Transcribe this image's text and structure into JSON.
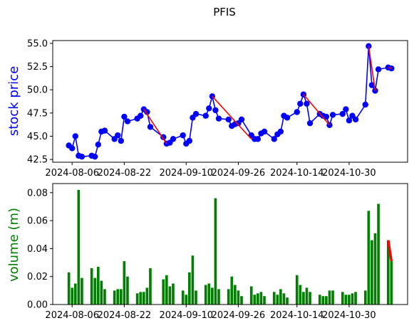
{
  "title": "PFIS",
  "colors": {
    "price_line": "#0000ff",
    "trend": "#ff0000",
    "volume": "#008000",
    "axes": "#000000"
  },
  "chart_data": [
    {
      "type": "line",
      "ylabel": "stock price",
      "ylim": [
        42.2,
        55.3
      ],
      "y_ticks": [
        "42.5",
        "45.0",
        "47.5",
        "50.0",
        "52.5",
        "55.0"
      ],
      "x_ticks": [
        "2024-08-06",
        "2024-08-22",
        "2024-09-10",
        "2024-09-26",
        "2024-10-14",
        "2024-10-30"
      ],
      "grid": false,
      "x": [
        "2024-08-05",
        "2024-08-06",
        "2024-08-07",
        "2024-08-08",
        "2024-08-09",
        "2024-08-12",
        "2024-08-13",
        "2024-08-14",
        "2024-08-15",
        "2024-08-16",
        "2024-08-19",
        "2024-08-20",
        "2024-08-21",
        "2024-08-22",
        "2024-08-23",
        "2024-08-26",
        "2024-08-27",
        "2024-08-28",
        "2024-08-29",
        "2024-08-30",
        "2024-09-03",
        "2024-09-04",
        "2024-09-05",
        "2024-09-06",
        "2024-09-09",
        "2024-09-10",
        "2024-09-11",
        "2024-09-12",
        "2024-09-13",
        "2024-09-16",
        "2024-09-17",
        "2024-09-18",
        "2024-09-19",
        "2024-09-20",
        "2024-09-23",
        "2024-09-24",
        "2024-09-25",
        "2024-09-26",
        "2024-09-27",
        "2024-09-30",
        "2024-10-01",
        "2024-10-02",
        "2024-10-03",
        "2024-10-04",
        "2024-10-07",
        "2024-10-08",
        "2024-10-09",
        "2024-10-10",
        "2024-10-11",
        "2024-10-14",
        "2024-10-15",
        "2024-10-16",
        "2024-10-17",
        "2024-10-18",
        "2024-10-21",
        "2024-10-22",
        "2024-10-23",
        "2024-10-24",
        "2024-10-25",
        "2024-10-28",
        "2024-10-29",
        "2024-10-30",
        "2024-10-31",
        "2024-11-01",
        "2024-11-04",
        "2024-11-05",
        "2024-11-06",
        "2024-11-07",
        "2024-11-08",
        "2024-11-11",
        "2024-11-12"
      ],
      "series": [
        {
          "values": [
            44.0,
            43.7,
            45.0,
            42.9,
            42.8,
            42.9,
            42.8,
            44.1,
            45.5,
            45.6,
            44.7,
            45.1,
            44.5,
            47.1,
            46.6,
            46.9,
            47.2,
            47.9,
            47.6,
            46.0,
            44.9,
            44.2,
            44.3,
            44.7,
            45.1,
            44.2,
            44.5,
            47.0,
            47.4,
            47.2,
            48.0,
            49.3,
            47.8,
            46.9,
            46.8,
            46.1,
            46.3,
            46.4,
            46.8,
            45.1,
            44.7,
            44.7,
            45.3,
            45.5,
            44.7,
            45.2,
            45.5,
            47.2,
            47.0,
            47.6,
            48.5,
            49.5,
            48.5,
            46.4,
            47.4,
            47.2,
            47.1,
            46.2,
            47.3,
            47.4,
            47.9,
            46.7,
            47.2,
            46.8,
            48.4,
            54.7,
            50.5,
            49.9,
            52.2,
            52.4,
            52.3
          ]
        }
      ],
      "trend_segments": [
        {
          "from": "2024-08-28",
          "to": "2024-09-04",
          "values": [
            47.9,
            44.2
          ]
        },
        {
          "from": "2024-09-18",
          "to": "2024-09-30",
          "values": [
            49.3,
            44.7
          ]
        },
        {
          "from": "2024-10-16",
          "to": "2024-10-24",
          "values": [
            49.5,
            46.2
          ]
        },
        {
          "from": "2024-11-05",
          "to": "2024-11-07",
          "values": [
            54.7,
            49.9
          ]
        },
        {
          "from": "2024-11-11",
          "to": "2024-11-12",
          "values": [
            52.4,
            52.3
          ]
        }
      ]
    },
    {
      "type": "bar",
      "ylabel": "volume (m)",
      "ylim": [
        0,
        0.0865
      ],
      "y_ticks": [
        "0.00",
        "0.02",
        "0.04",
        "0.06",
        "0.08"
      ],
      "x_ticks": [
        "2024-08-06",
        "2024-08-22",
        "2024-09-10",
        "2024-09-26",
        "2024-10-14",
        "2024-10-30"
      ],
      "grid": false,
      "values": [
        0.023,
        0.012,
        0.015,
        0.082,
        0.019,
        0.026,
        0.019,
        0.027,
        0.017,
        0.011,
        0.01,
        0.011,
        0.011,
        0.031,
        0.02,
        0.008,
        0.009,
        0.009,
        0.012,
        0.026,
        0.018,
        0.021,
        0.013,
        0.015,
        0.01,
        0.007,
        0.023,
        0.035,
        0.01,
        0.014,
        0.015,
        0.012,
        0.076,
        0.011,
        0.011,
        0.02,
        0.014,
        0.01,
        0.006,
        0.013,
        0.007,
        0.008,
        0.009,
        0.006,
        0.009,
        0.007,
        0.011,
        0.008,
        0.005,
        0.021,
        0.014,
        0.009,
        0.012,
        0.009,
        0.007,
        0.006,
        0.006,
        0.01,
        0.01,
        0.009,
        0.007,
        0.007,
        0.008,
        0.009,
        0.01,
        0.067,
        0.046,
        0.051,
        0.072,
        0.046,
        0.031
      ],
      "trend_segments": [
        {
          "from": "2024-11-11",
          "to": "2024-11-12",
          "values": [
            0.046,
            0.031
          ]
        }
      ]
    }
  ]
}
